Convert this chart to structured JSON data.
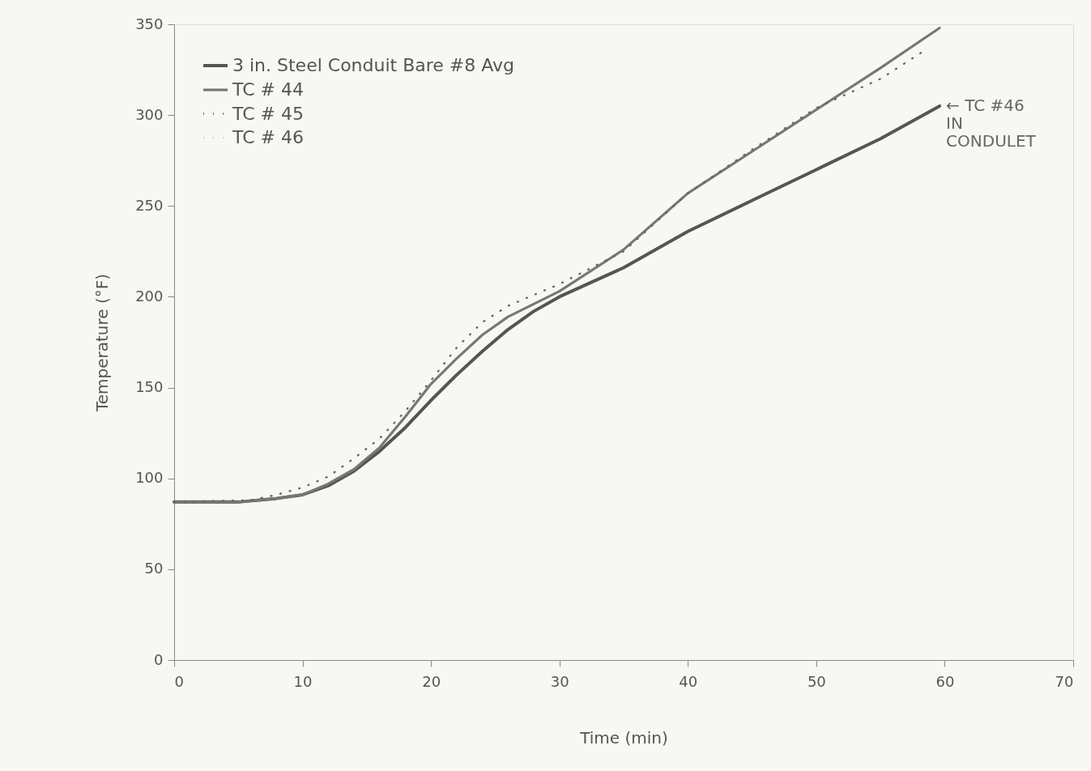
{
  "chart_data": {
    "type": "line",
    "xlabel": "Time (min)",
    "ylabel": "Temperature (°F)",
    "xlim": [
      0,
      70
    ],
    "xticks": [
      0,
      10,
      20,
      30,
      40,
      50,
      60,
      70
    ],
    "ylim": [
      0,
      350
    ],
    "yticks": [
      0,
      50,
      100,
      150,
      200,
      250,
      300,
      350
    ],
    "grid": false,
    "legend": "top left",
    "series": [
      {
        "name": "3 in. Steel Conduit Bare #8 Avg",
        "color": "#555555",
        "line_style": "solid",
        "x": [
          0,
          5,
          8,
          10,
          12,
          14,
          16,
          18,
          20,
          22,
          24,
          26,
          28,
          30,
          35,
          40,
          45,
          50,
          55,
          59.6
        ],
        "values": [
          87,
          87,
          89,
          91,
          96,
          104,
          115,
          128,
          143,
          157,
          170,
          182,
          192,
          200,
          216,
          236,
          253,
          270,
          287,
          305
        ]
      },
      {
        "name": "TC # 44",
        "color": "#777777",
        "line_style": "solid",
        "x": [
          0,
          5,
          8,
          10,
          12,
          14,
          16,
          18,
          20,
          22,
          24,
          26,
          28,
          30,
          35,
          40,
          45,
          50,
          55,
          59.6
        ],
        "values": [
          87,
          87,
          89,
          91,
          97,
          105,
          117,
          134,
          152,
          166,
          179,
          189,
          196,
          203,
          226,
          257,
          280,
          303,
          326,
          348
        ]
      },
      {
        "name": "TC # 45",
        "color": "#666666",
        "line_style": "dotted",
        "x": [
          0,
          6,
          8,
          10,
          12,
          14,
          16,
          18,
          20,
          22,
          24,
          26,
          28,
          30,
          35,
          40,
          45,
          50,
          55,
          58.3
        ],
        "values": [
          87,
          88,
          91,
          95,
          101,
          111,
          122,
          137,
          154,
          172,
          186,
          195,
          201,
          207,
          225,
          257,
          281,
          304,
          320,
          335
        ]
      },
      {
        "name": "TC # 46",
        "color": "#aaaaaa",
        "line_style": "dotted"
      }
    ],
    "annotations": [
      {
        "text": "← TC #46\nIN\nCONDULET",
        "x": 59.6,
        "y": 305
      }
    ]
  }
}
